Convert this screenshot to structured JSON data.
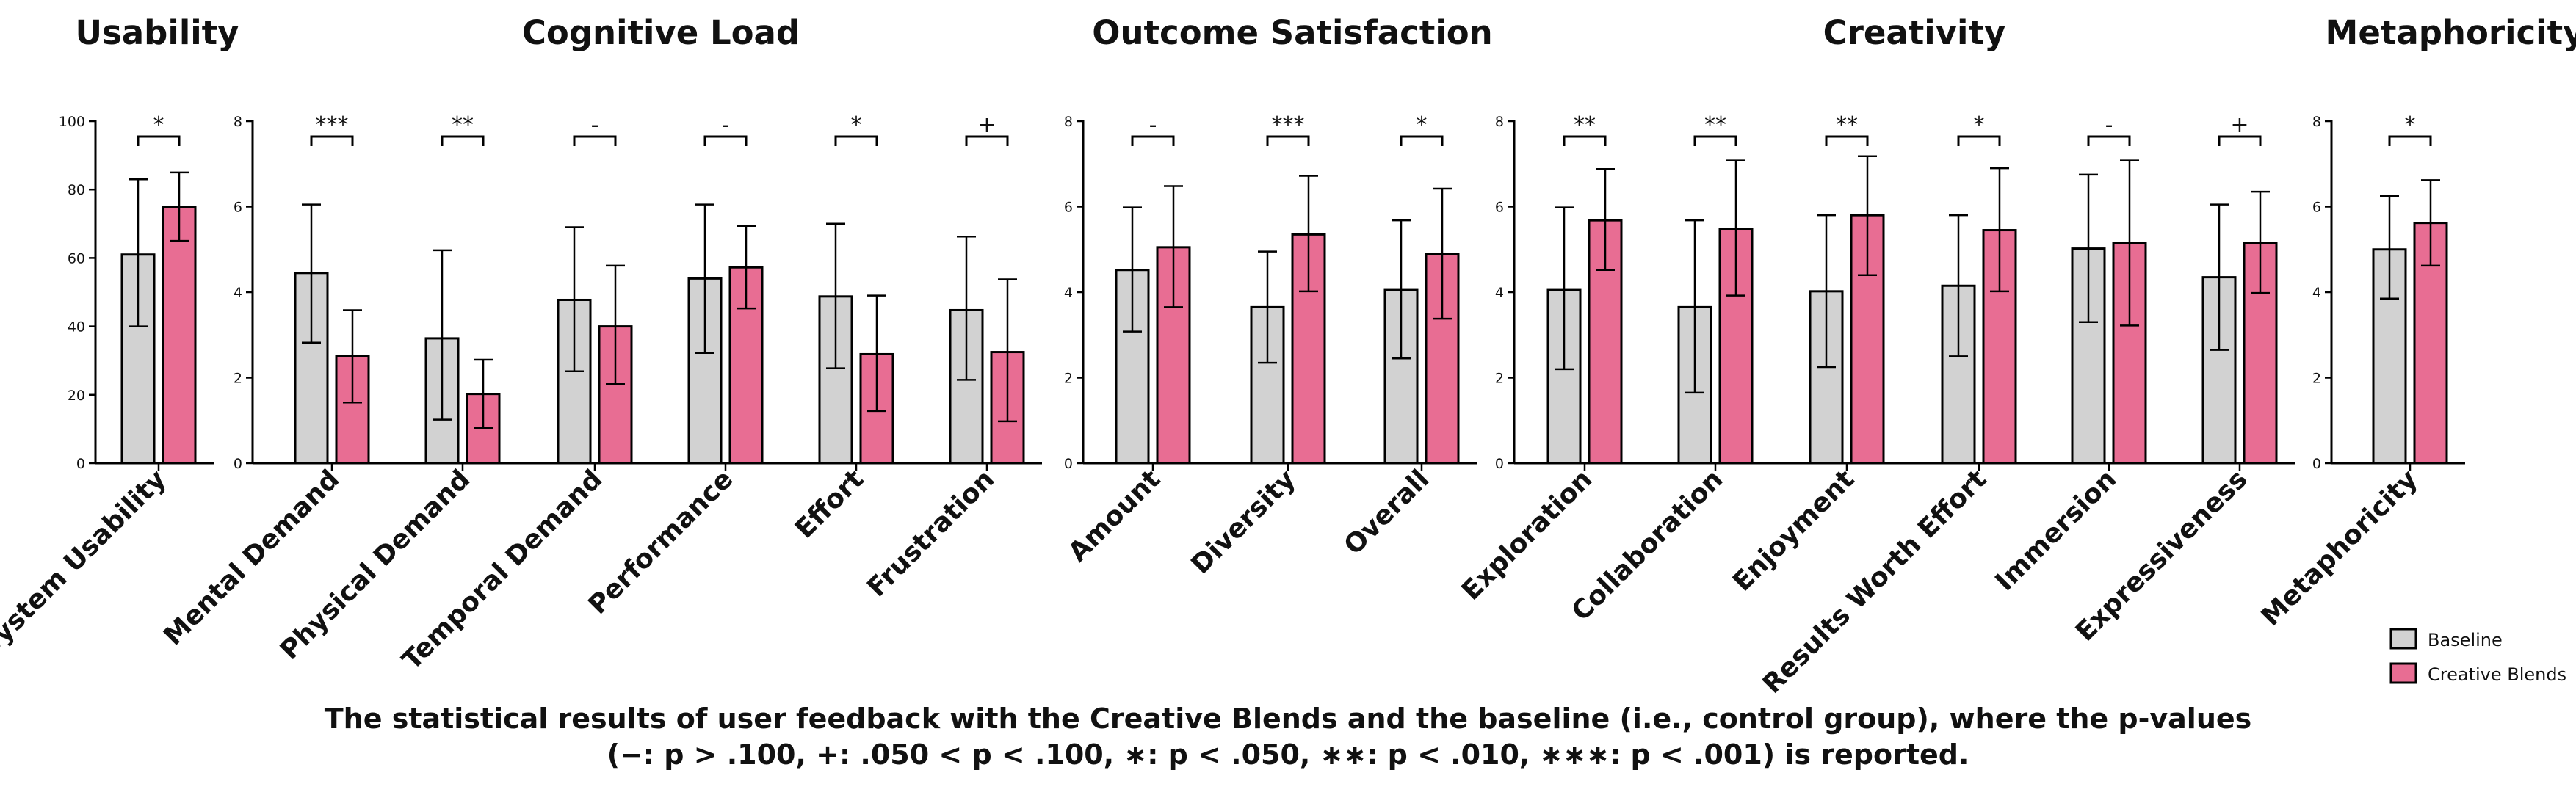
{
  "colors": {
    "baseline": "#d2d2d2",
    "creative": "#e86d93",
    "outline": "#000000"
  },
  "legend": {
    "baseline": "Baseline",
    "creative": "Creative Blends"
  },
  "caption": {
    "line1": "The statistical results of user feedback with the Creative Blends and the baseline (i.e., control group), where the p-values",
    "line2": "(−: p > .100, +: .050 < p < .100, ∗: p < .050, ∗∗: p < .010, ∗∗∗: p < .001) is reported."
  },
  "chart_data": [
    {
      "type": "bar",
      "title": "Usability",
      "ylim": [
        0,
        100
      ],
      "yticks": [
        "0",
        "20",
        "40",
        "60",
        "80",
        "100"
      ],
      "categories": [
        "System Usability"
      ],
      "series": [
        {
          "name": "Baseline",
          "values": [
            61
          ],
          "error": [
            [
              40,
              83
            ]
          ]
        },
        {
          "name": "Creative Blends",
          "values": [
            75
          ],
          "error": [
            [
              65,
              85
            ]
          ]
        }
      ],
      "significance": [
        "*"
      ]
    },
    {
      "type": "bar",
      "title": "Cognitive Load",
      "ylim": [
        0,
        8
      ],
      "yticks": [
        "0",
        "2",
        "4",
        "6",
        "8"
      ],
      "categories": [
        "Mental Demand",
        "Physical Demand",
        "Temporal Demand",
        "Performance",
        "Effort",
        "Frustration"
      ],
      "series": [
        {
          "name": "Baseline",
          "values": [
            4.45,
            2.92,
            3.82,
            4.32,
            3.9,
            3.58
          ],
          "error": [
            [
              2.82,
              6.05
            ],
            [
              1.02,
              4.98
            ],
            [
              2.15,
              5.52
            ],
            [
              2.58,
              6.05
            ],
            [
              2.22,
              5.6
            ],
            [
              1.95,
              5.3
            ]
          ]
        },
        {
          "name": "Creative Blends",
          "values": [
            2.5,
            1.62,
            3.2,
            4.58,
            2.55,
            2.6
          ],
          "error": [
            [
              1.42,
              3.58
            ],
            [
              0.82,
              2.42
            ],
            [
              1.85,
              4.62
            ],
            [
              3.62,
              5.55
            ],
            [
              1.22,
              3.92
            ],
            [
              0.98,
              4.3
            ]
          ]
        }
      ],
      "significance": [
        "***",
        "**",
        "-",
        "-",
        "*",
        "+"
      ]
    },
    {
      "type": "bar",
      "title": "Outcome Satisfaction",
      "ylim": [
        0,
        8
      ],
      "yticks": [
        "0",
        "2",
        "4",
        "6",
        "8"
      ],
      "categories": [
        "Amount",
        "Diversity",
        "Overall"
      ],
      "series": [
        {
          "name": "Baseline",
          "values": [
            4.52,
            3.65,
            4.05
          ],
          "error": [
            [
              3.08,
              5.98
            ],
            [
              2.35,
              4.95
            ],
            [
              2.45,
              5.68
            ]
          ]
        },
        {
          "name": "Creative Blends",
          "values": [
            5.05,
            5.35,
            4.9
          ],
          "error": [
            [
              3.65,
              6.48
            ],
            [
              4.02,
              6.72
            ],
            [
              3.38,
              6.42
            ]
          ]
        }
      ],
      "significance": [
        "-",
        "***",
        "*"
      ]
    },
    {
      "type": "bar",
      "title": "Creativity",
      "ylim": [
        0,
        8
      ],
      "yticks": [
        "0",
        "2",
        "4",
        "6",
        "8"
      ],
      "categories": [
        "Exploration",
        "Collaboration",
        "Enjoyment",
        "Results Worth Effort",
        "Immersion",
        "Expressiveness"
      ],
      "series": [
        {
          "name": "Baseline",
          "values": [
            4.05,
            3.65,
            4.02,
            4.15,
            5.02,
            4.35
          ],
          "error": [
            [
              2.2,
              5.98
            ],
            [
              1.65,
              5.68
            ],
            [
              2.25,
              5.8
            ],
            [
              2.5,
              5.8
            ],
            [
              3.3,
              6.75
            ],
            [
              2.65,
              6.05
            ]
          ]
        },
        {
          "name": "Creative Blends",
          "values": [
            5.68,
            5.48,
            5.8,
            5.45,
            5.15,
            5.15
          ],
          "error": [
            [
              4.52,
              6.88
            ],
            [
              3.92,
              7.08
            ],
            [
              4.4,
              7.18
            ],
            [
              4.02,
              6.9
            ],
            [
              3.22,
              7.08
            ],
            [
              3.98,
              6.35
            ]
          ]
        }
      ],
      "significance": [
        "**",
        "**",
        "**",
        "*",
        "-",
        "+"
      ]
    },
    {
      "type": "bar",
      "title": "Metaphoricity",
      "ylim": [
        0,
        8
      ],
      "yticks": [
        "0",
        "2",
        "4",
        "6",
        "8"
      ],
      "categories": [
        "Metaphoricity"
      ],
      "series": [
        {
          "name": "Baseline",
          "values": [
            5.0
          ],
          "error": [
            [
              3.85,
              6.25
            ]
          ]
        },
        {
          "name": "Creative Blends",
          "values": [
            5.62
          ],
          "error": [
            [
              4.62,
              6.62
            ]
          ]
        }
      ],
      "significance": [
        "*"
      ]
    }
  ]
}
